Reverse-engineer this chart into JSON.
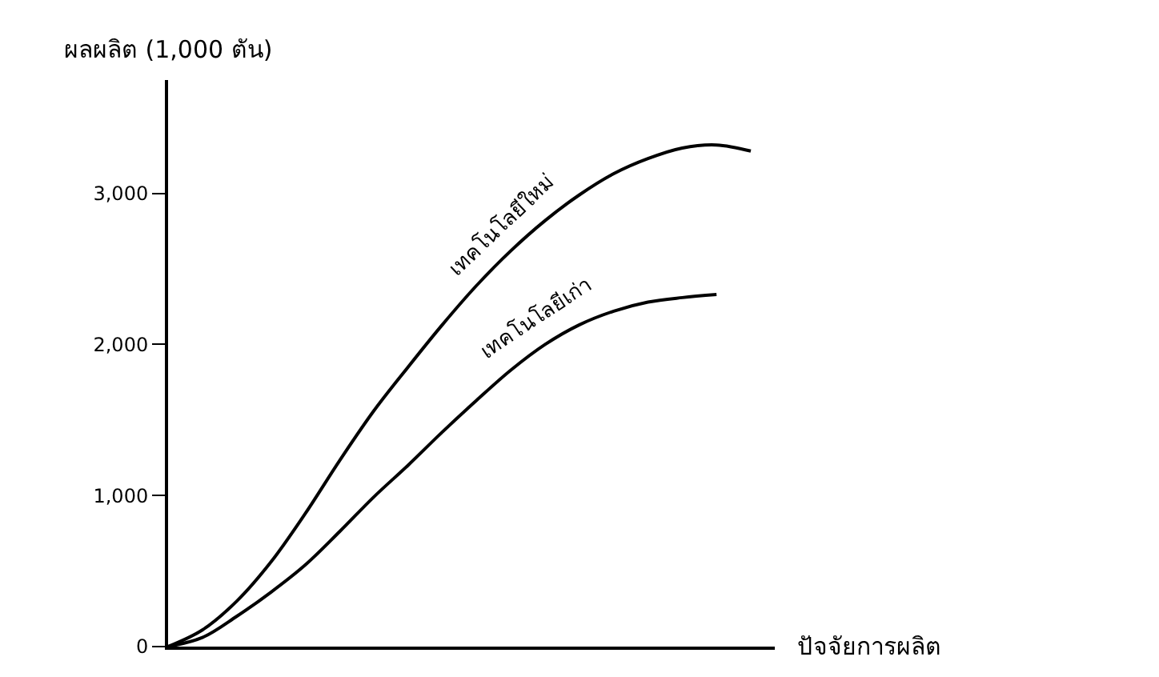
{
  "chart_data": {
    "type": "line",
    "ylabel": "ผลผลิต (1,000 ตัน)",
    "xlabel": "ปัจจัยการผลิต",
    "categories": [
      null,
      null,
      null,
      null,
      null,
      null,
      null,
      null,
      null,
      null,
      null,
      null,
      null,
      null,
      null,
      null,
      null,
      null
    ],
    "series": [
      {
        "name": "เทคโนโลยีใหม่",
        "color": "#000000",
        "values": [
          0,
          110,
          300,
          560,
          880,
          1230,
          1560,
          1850,
          2130,
          2390,
          2620,
          2820,
          2990,
          3130,
          3230,
          3300,
          3320,
          3280
        ]
      },
      {
        "name": "เทคโนโลยีเก่า",
        "color": "#000000",
        "values": [
          0,
          60,
          200,
          360,
          540,
          760,
          990,
          1200,
          1420,
          1630,
          1830,
          2000,
          2130,
          2220,
          2280,
          2310,
          2330,
          null
        ]
      }
    ],
    "ylim": [
      0,
      3750
    ],
    "yticks": [
      0,
      {
        "value": 1000,
        "label": "1,000"
      },
      {
        "value": 2000,
        "label": "2,000"
      },
      {
        "value": 3000,
        "label": "3,000"
      }
    ],
    "legend": false,
    "marker": "none",
    "line_style": "solid"
  }
}
